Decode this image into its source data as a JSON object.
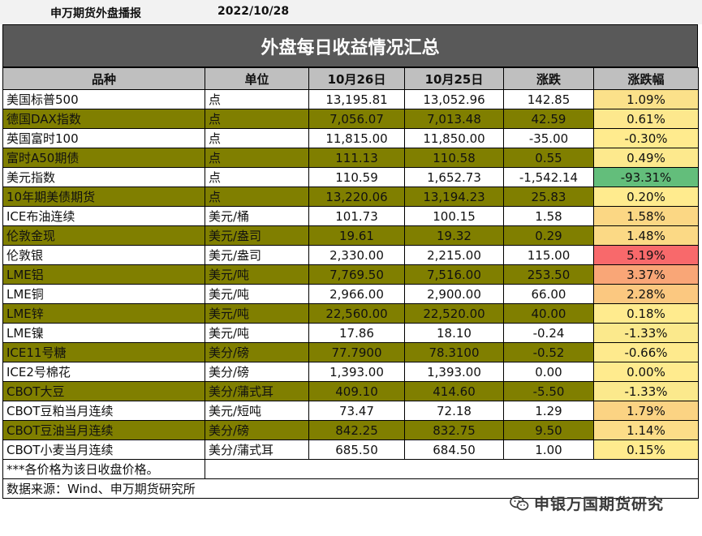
{
  "header": {
    "org": "申万期货外盘播报",
    "date": "2022/10/28"
  },
  "title": "外盘每日收益情况汇总",
  "columns": [
    "品种",
    "单位",
    "10月26日",
    "10月25日",
    "涨跌",
    "涨跌幅"
  ],
  "rows": [
    {
      "name": "美国标普500",
      "unit": "点",
      "d26": "13,195.81",
      "d25": "13,052.96",
      "chg": "142.85",
      "pct": "1.09%",
      "pct_color": "#fbe18a",
      "olive": false
    },
    {
      "name": "德国DAX指数",
      "unit": "点",
      "d26": "7,056.07",
      "d25": "7,013.48",
      "chg": "42.59",
      "pct": "0.61%",
      "pct_color": "#fde88d",
      "olive": true
    },
    {
      "name": "英国富时100",
      "unit": "点",
      "d26": "11,815.00",
      "d25": "11,850.00",
      "chg": "-35.00",
      "pct": "-0.30%",
      "pct_color": "#ffeb8e",
      "olive": false
    },
    {
      "name": "富时A50期债",
      "unit": "点",
      "d26": "111.13",
      "d25": "110.58",
      "chg": "0.55",
      "pct": "0.49%",
      "pct_color": "#fde98d",
      "olive": true
    },
    {
      "name": "美元指数",
      "unit": "点",
      "d26": "110.59",
      "d25": "1,652.73",
      "chg": "-1,542.14",
      "pct": "-93.31%",
      "pct_color": "#63be7b",
      "olive": false
    },
    {
      "name": "10年期美债期货",
      "unit": "点",
      "d26": "13,220.06",
      "d25": "13,194.23",
      "chg": "25.83",
      "pct": "0.20%",
      "pct_color": "#ffeb8e",
      "olive": true
    },
    {
      "name": "ICE布油连续",
      "unit": "美元/桶",
      "d26": "101.73",
      "d25": "100.15",
      "chg": "1.58",
      "pct": "1.58%",
      "pct_color": "#fbd784",
      "olive": false
    },
    {
      "name": "伦敦金现",
      "unit": "美元/盎司",
      "d26": "19.61",
      "d25": "19.32",
      "chg": "0.29",
      "pct": "1.48%",
      "pct_color": "#fbd985",
      "olive": true
    },
    {
      "name": "伦敦银",
      "unit": "美元/盎司",
      "d26": "2,330.00",
      "d25": "2,215.00",
      "chg": "115.00",
      "pct": "5.19%",
      "pct_color": "#f8696b",
      "olive": false
    },
    {
      "name": "LME铝",
      "unit": "美元/吨",
      "d26": "7,769.50",
      "d25": "7,516.00",
      "chg": "253.50",
      "pct": "3.37%",
      "pct_color": "#f9a677",
      "olive": true
    },
    {
      "name": "LME铜",
      "unit": "美元/吨",
      "d26": "2,966.00",
      "d25": "2,900.00",
      "chg": "66.00",
      "pct": "2.28%",
      "pct_color": "#fbc880",
      "olive": false
    },
    {
      "name": "LME锌",
      "unit": "美元/吨",
      "d26": "22,560.00",
      "d25": "22,520.00",
      "chg": "40.00",
      "pct": "0.18%",
      "pct_color": "#ffeb8e",
      "olive": true
    },
    {
      "name": "LME镍",
      "unit": "美元/吨",
      "d26": "17.86",
      "d25": "18.10",
      "chg": "-0.24",
      "pct": "-1.33%",
      "pct_color": "#fbe98c",
      "olive": false
    },
    {
      "name": "ICE11号糖",
      "unit": "美分/磅",
      "d26": "77.7900",
      "d25": "78.3100",
      "chg": "-0.52",
      "pct": "-0.66%",
      "pct_color": "#feea8d",
      "olive": true
    },
    {
      "name": "ICE2号棉花",
      "unit": "美分/磅",
      "d26": "1,393.00",
      "d25": "1,393.00",
      "chg": "0.00",
      "pct": "0.00%",
      "pct_color": "#ffeb8e",
      "olive": false
    },
    {
      "name": "CBOT大豆",
      "unit": "美分/蒲式耳",
      "d26": "409.10",
      "d25": "414.60",
      "chg": "-5.50",
      "pct": "-1.33%",
      "pct_color": "#fbe98c",
      "olive": true
    },
    {
      "name": "CBOT豆粕当月连续",
      "unit": "美元/短吨",
      "d26": "73.47",
      "d25": "72.18",
      "chg": "1.29",
      "pct": "1.79%",
      "pct_color": "#fbd383",
      "olive": false
    },
    {
      "name": "CBOT豆油当月连续",
      "unit": "美分/磅",
      "d26": "842.25",
      "d25": "832.75",
      "chg": "9.50",
      "pct": "1.14%",
      "pct_color": "#fcdd88",
      "olive": true
    },
    {
      "name": "CBOT小麦当月连续",
      "unit": "美分/蒲式耳",
      "d26": "685.50",
      "d25": "684.50",
      "chg": "1.00",
      "pct": "0.15%",
      "pct_color": "#ffeb8e",
      "olive": false
    }
  ],
  "footer": {
    "note": "***各价格为该日收盘价格。",
    "source": "数据来源：Wind、申万期货研究所"
  },
  "watermark": {
    "text": "申银万国期货研究",
    "icon": "wechat-icon"
  }
}
